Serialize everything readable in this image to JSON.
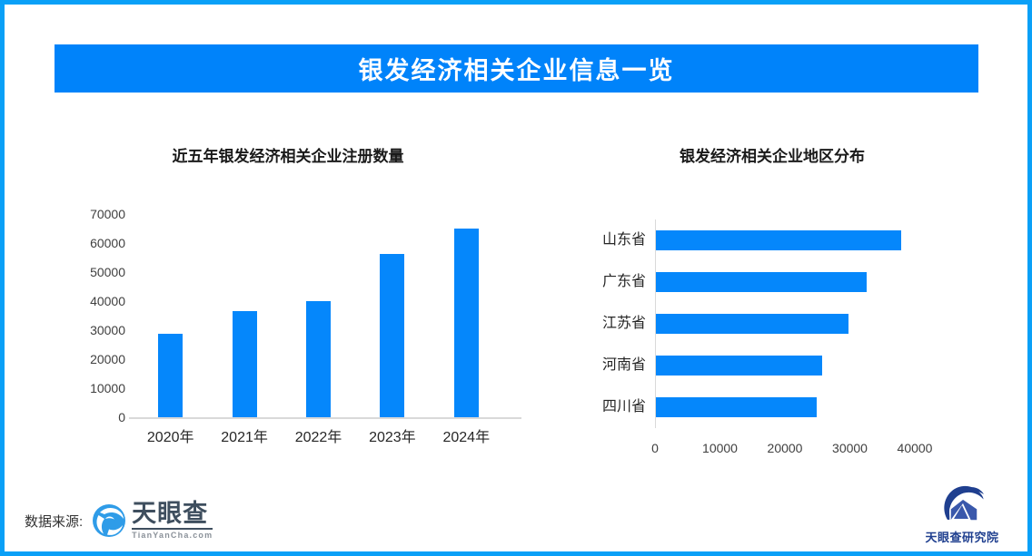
{
  "page": {
    "banner_title": "银发经济相关企业信息一览",
    "source_label": "数据来源:",
    "brand": {
      "logo_name": "天眼查",
      "logo_subtext": "TianYanCha.com",
      "research_name": "天眼查研究院"
    },
    "icons": {
      "brand_icon": "tianyancha-aperture-icon",
      "research_icon": "tianyancha-research-eye-icon"
    },
    "colors": {
      "frame": "#0aa0f7",
      "banner": "#0083fa",
      "bar": "#0587fb",
      "axis": "#d9d9d9",
      "tick_text": "#3f3f3f",
      "title_text": "#1a1a1a",
      "brand_dark": "#3e4e5e",
      "research_navy": "#1f3f8f"
    }
  },
  "chart_data": [
    {
      "type": "bar",
      "title": "近五年银发经济相关企业注册数量",
      "categories": [
        "2020年",
        "2021年",
        "2022年",
        "2023年",
        "2024年"
      ],
      "values": [
        28800,
        36700,
        40000,
        56400,
        65100
      ],
      "xlabel": "",
      "ylabel": "",
      "ylim": [
        0,
        70000
      ],
      "ytick_step": 10000,
      "grid": false,
      "legend": "none",
      "bar_color": "#0587fb"
    },
    {
      "type": "bar",
      "orientation": "horizontal",
      "title": "银发经济相关企业地区分布",
      "categories": [
        "山东省",
        "广东省",
        "江苏省",
        "河南省",
        "四川省"
      ],
      "values": [
        37800,
        32400,
        29700,
        25600,
        24800
      ],
      "xlabel": "",
      "ylabel": "",
      "xlim": [
        0,
        40000
      ],
      "xtick_step": 10000,
      "grid": false,
      "legend": "none",
      "bar_color": "#0587fb"
    }
  ]
}
